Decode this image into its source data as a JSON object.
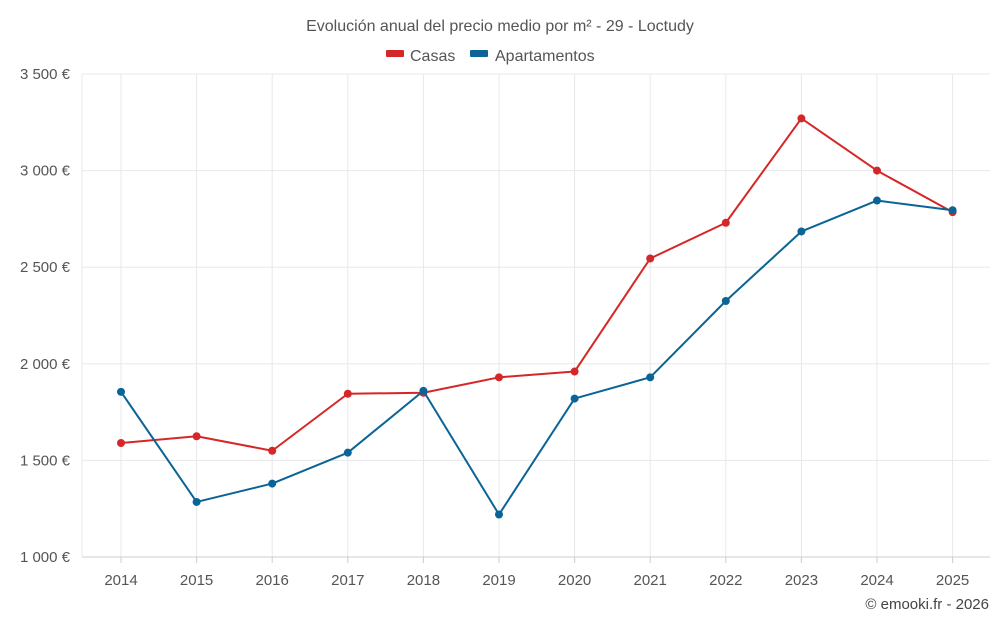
{
  "chart_data": {
    "type": "line",
    "title": "Evolución anual del precio medio por m² - 29 - Loctudy",
    "categories": [
      "2014",
      "2015",
      "2016",
      "2017",
      "2018",
      "2019",
      "2020",
      "2021",
      "2022",
      "2023",
      "2024",
      "2025"
    ],
    "y_ticks": [
      1000,
      1500,
      2000,
      2500,
      3000,
      3500
    ],
    "y_tick_labels": [
      "1 000 €",
      "1 500 €",
      "2 000 €",
      "2 500 €",
      "3 000 €",
      "3 500 €"
    ],
    "ylim": [
      1000,
      3500
    ],
    "grid": true,
    "legend_position": "top-center",
    "series": [
      {
        "name": "Casas",
        "color": "#d62728",
        "values": [
          1590,
          1625,
          1550,
          1845,
          1850,
          1930,
          1960,
          2545,
          2730,
          3270,
          3000,
          2785
        ]
      },
      {
        "name": "Apartamentos",
        "color": "#0a6496",
        "values": [
          1855,
          1285,
          1380,
          1540,
          1860,
          1220,
          1820,
          1930,
          2325,
          2685,
          2845,
          2795
        ]
      }
    ],
    "credit": "© emooki.fr - 2026"
  }
}
